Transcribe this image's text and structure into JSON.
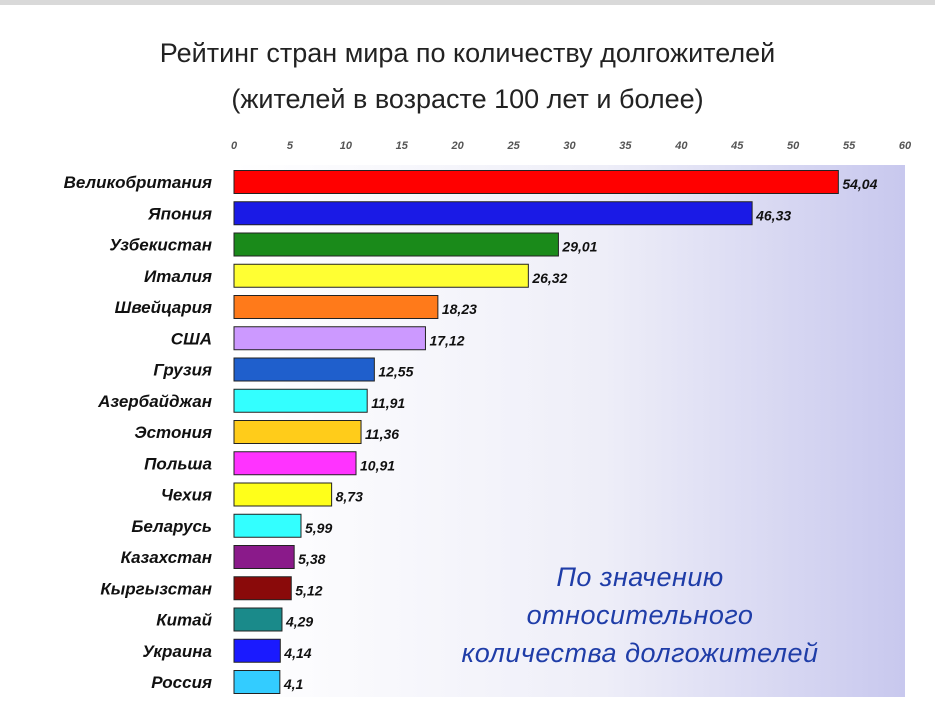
{
  "chart_data": {
    "type": "bar",
    "orientation": "horizontal",
    "title": "Рейтинг стран мира по количеству долгожителей",
    "subtitle": "(жителей в возрасте 100 лет и более)",
    "xlim": [
      0,
      60
    ],
    "x_ticks": [
      "0",
      "5",
      "10",
      "15",
      "20",
      "25",
      "30",
      "35",
      "40",
      "45",
      "50",
      "55",
      "60"
    ],
    "categories": [
      "Великобритания",
      "Япония",
      "Узбекистан",
      "Италия",
      "Швейцария",
      "США",
      "Грузия",
      "Азербайджан",
      "Эстония",
      "Польша",
      "Чехия",
      "Беларусь",
      "Казахстан",
      "Кыргызстан",
      "Китай",
      "Украина",
      "Россия"
    ],
    "values": [
      54.04,
      46.33,
      29.01,
      26.32,
      18.23,
      17.12,
      12.55,
      11.91,
      11.36,
      10.91,
      8.73,
      5.99,
      5.38,
      5.12,
      4.29,
      4.14,
      4.1
    ],
    "value_labels": [
      "54,04",
      "46,33",
      "29,01",
      "26,32",
      "18,23",
      "17,12",
      "12,55",
      "11,91",
      "11,36",
      "10,91",
      "8,73",
      "5,99",
      "5,38",
      "5,12",
      "4,29",
      "4,14",
      "4,1"
    ],
    "bar_colors": [
      "#ff0000",
      "#1a1ae6",
      "#1a8a1a",
      "#ffff33",
      "#ff7a1a",
      "#cc99ff",
      "#1f5fcc",
      "#33ffff",
      "#ffcc1a",
      "#ff33ff",
      "#ffff1a",
      "#33ffff",
      "#8a1a8a",
      "#8a0a0a",
      "#1a8a8a",
      "#1a1aff",
      "#33ccff"
    ],
    "annotation": [
      "По значению",
      "относительного",
      "количества долгожителей"
    ],
    "grid": false,
    "legend": "none"
  }
}
